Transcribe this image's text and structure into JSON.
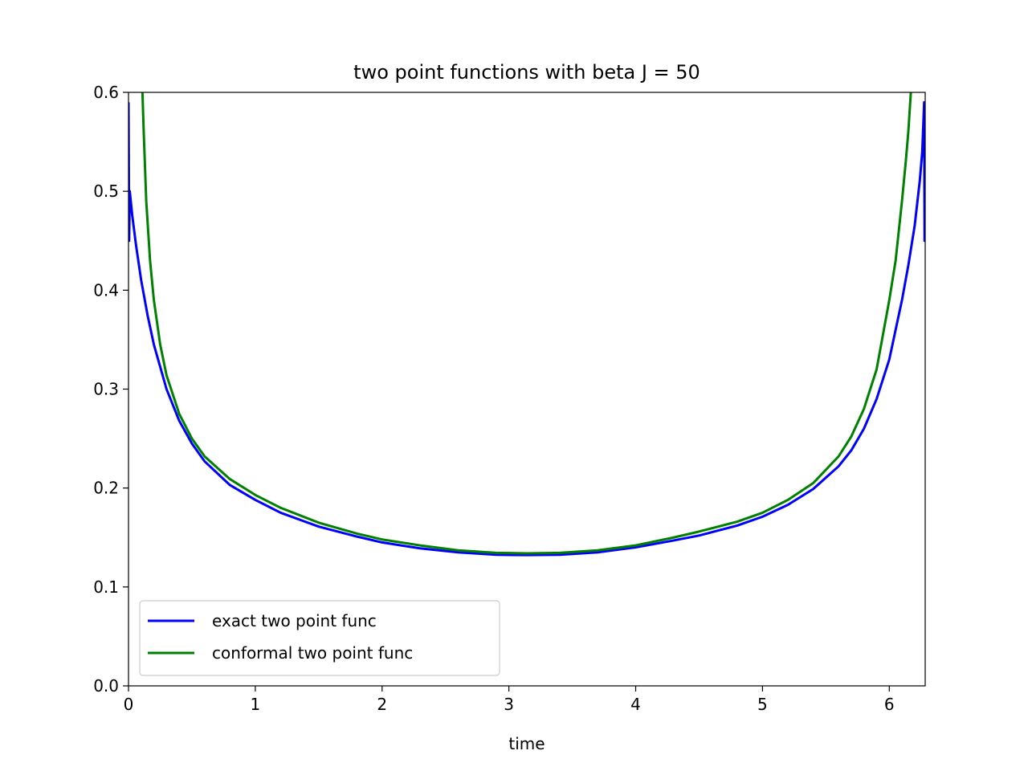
{
  "chart_data": {
    "type": "line",
    "title": "two point functions with beta J = 50",
    "xlabel": "time",
    "ylabel": "",
    "xlim": [
      0,
      6.2832
    ],
    "ylim": [
      0,
      0.6
    ],
    "xticks": [
      0,
      1,
      2,
      3,
      4,
      5,
      6
    ],
    "xtick_labels": [
      "0",
      "1",
      "2",
      "3",
      "4",
      "5",
      "6"
    ],
    "yticks": [
      0,
      0.1,
      0.2,
      0.3,
      0.4,
      0.5,
      0.6
    ],
    "ytick_labels": [
      "0.0",
      "0.1",
      "0.2",
      "0.3",
      "0.4",
      "0.5",
      "0.6"
    ],
    "grid": false,
    "legend_position": "lower-left",
    "series": [
      {
        "name": "exact two point func",
        "color": "#0000ff",
        "x": [
          0,
          0.005,
          0.01,
          0.03,
          0.06,
          0.1,
          0.15,
          0.2,
          0.3,
          0.4,
          0.5,
          0.6,
          0.8,
          1.0,
          1.2,
          1.5,
          1.8,
          2.0,
          2.3,
          2.6,
          2.9,
          3.1416,
          3.4,
          3.7,
          4.0,
          4.3,
          4.5,
          4.8,
          5.0,
          5.2,
          5.4,
          5.6,
          5.7,
          5.8,
          5.9,
          6.0,
          6.1,
          6.15,
          6.2,
          6.24,
          6.26,
          6.275,
          6.2782,
          6.2832
        ],
        "y": [
          0.59,
          0.45,
          0.5,
          0.475,
          0.445,
          0.41,
          0.375,
          0.345,
          0.3,
          0.268,
          0.245,
          0.227,
          0.203,
          0.188,
          0.175,
          0.161,
          0.151,
          0.145,
          0.139,
          0.135,
          0.1325,
          0.1322,
          0.1325,
          0.135,
          0.14,
          0.147,
          0.152,
          0.162,
          0.171,
          0.183,
          0.199,
          0.222,
          0.238,
          0.26,
          0.29,
          0.33,
          0.39,
          0.425,
          0.465,
          0.51,
          0.54,
          0.59,
          0.45,
          0.59
        ]
      },
      {
        "name": "conformal two point func",
        "color": "#008000",
        "x": [
          0.11,
          0.12,
          0.14,
          0.17,
          0.2,
          0.25,
          0.3,
          0.4,
          0.5,
          0.6,
          0.8,
          1.0,
          1.2,
          1.5,
          1.8,
          2.0,
          2.3,
          2.6,
          2.9,
          3.1416,
          3.4,
          3.7,
          4.0,
          4.3,
          4.5,
          4.8,
          5.0,
          5.2,
          5.4,
          5.6,
          5.7,
          5.8,
          5.9,
          6.0,
          6.05,
          6.1,
          6.13,
          6.15,
          6.16,
          6.17
        ],
        "y": [
          0.6,
          0.56,
          0.49,
          0.43,
          0.39,
          0.345,
          0.314,
          0.275,
          0.25,
          0.232,
          0.209,
          0.193,
          0.18,
          0.165,
          0.154,
          0.148,
          0.142,
          0.137,
          0.1345,
          0.134,
          0.1345,
          0.137,
          0.142,
          0.15,
          0.156,
          0.166,
          0.175,
          0.188,
          0.205,
          0.232,
          0.252,
          0.28,
          0.32,
          0.39,
          0.43,
          0.49,
          0.53,
          0.56,
          0.58,
          0.6
        ]
      }
    ]
  }
}
